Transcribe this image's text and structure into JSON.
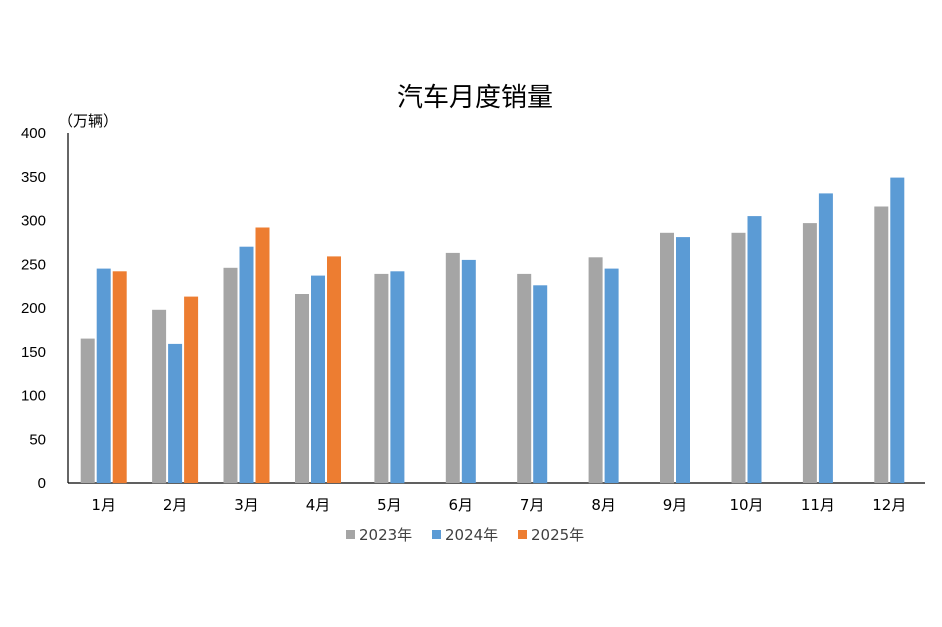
{
  "chart_data": {
    "type": "bar",
    "title": "汽车月度销量",
    "unit_label": "（万辆）",
    "categories": [
      "1月",
      "2月",
      "3月",
      "4月",
      "5月",
      "6月",
      "7月",
      "8月",
      "9月",
      "10月",
      "11月",
      "12月"
    ],
    "yticks": [
      "0",
      "50",
      "100",
      "150",
      "200",
      "250",
      "300",
      "350",
      "400"
    ],
    "ylim": [
      0,
      400
    ],
    "grid": false,
    "legend_position": "bottom",
    "series": [
      {
        "name": "2023年",
        "color": "#a5a5a5",
        "values": [
          165,
          198,
          246,
          216,
          239,
          263,
          239,
          258,
          286,
          286,
          297,
          316
        ]
      },
      {
        "name": "2024年",
        "color": "#5b9bd5",
        "values": [
          245,
          159,
          270,
          237,
          242,
          255,
          226,
          245,
          281,
          305,
          331,
          349
        ]
      },
      {
        "name": "2025年",
        "color": "#ed7d31",
        "values": [
          242,
          213,
          292,
          259,
          null,
          null,
          null,
          null,
          null,
          null,
          null,
          null
        ]
      }
    ]
  }
}
